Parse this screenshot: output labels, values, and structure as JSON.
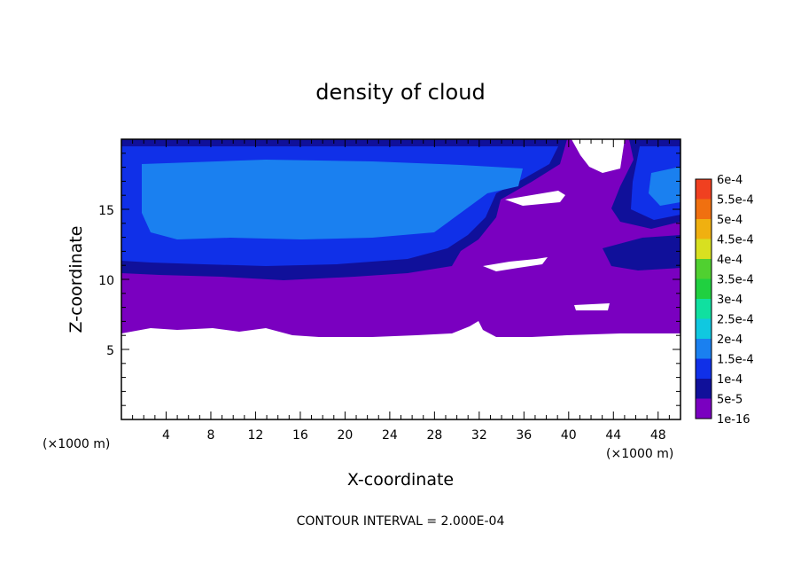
{
  "chart_data": {
    "type": "heatmap",
    "title": "density of cloud",
    "xlabel": "X-coordinate",
    "ylabel": "Z-coordinate",
    "x_unit": "(×1000 m)",
    "z_unit": "(×1000 m)",
    "xlim": [
      0,
      50
    ],
    "ylim": [
      0,
      20
    ],
    "xticks": [
      "4",
      "8",
      "12",
      "16",
      "20",
      "24",
      "28",
      "32",
      "36",
      "40",
      "44",
      "48"
    ],
    "yticks": [
      "5",
      "10",
      "15"
    ],
    "footer": "CONTOUR INTERVAL = 2.000E-04",
    "colorbar": {
      "levels": [
        "1e-16",
        "5e-5",
        "1e-4",
        "1.5e-4",
        "2e-4",
        "2.5e-4",
        "3e-4",
        "3.5e-4",
        "4e-4",
        "4.5e-4",
        "5e-4",
        "5.5e-4",
        "6e-4"
      ],
      "colors": [
        "#7a00c0",
        "#10109a",
        "#1030e8",
        "#1a80f0",
        "#10c8e0",
        "#10e0a0",
        "#20d040",
        "#50d030",
        "#d8e020",
        "#f0b010",
        "#f07010",
        "#f04020",
        "#f08080"
      ]
    },
    "regions": [
      {
        "name": "purple layer",
        "level": "1e-16",
        "z_range": [
          6.2,
          10.5
        ]
      },
      {
        "name": "upper blue layer",
        "level": "1e-4",
        "z_range": [
          10.5,
          20
        ]
      },
      {
        "name": "no cloud",
        "level": "none",
        "z_range": [
          0,
          6.2
        ]
      }
    ],
    "grid": false
  }
}
